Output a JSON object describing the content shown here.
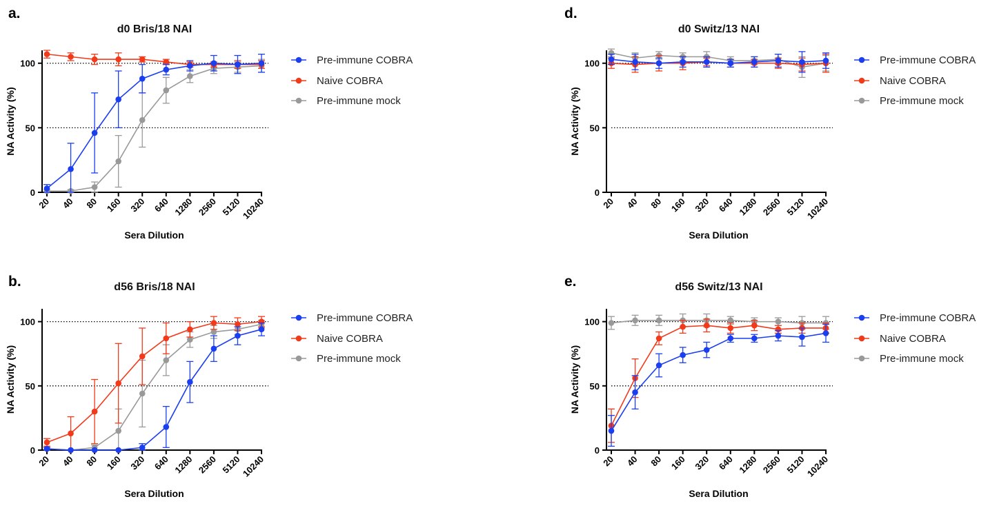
{
  "legend": {
    "series_names": [
      "Pre-immune COBRA",
      "Naive COBRA",
      "Pre-immune mock"
    ],
    "colors": [
      "#1a3ef0",
      "#f2391a",
      "#999999"
    ]
  },
  "chart_data": [
    {
      "type": "line",
      "panel_label": "a.",
      "title": "d0 Bris/18 NAI",
      "xlabel": "Sera Dilution",
      "ylabel": "NA Activity (%)",
      "categories": [
        "20",
        "40",
        "80",
        "160",
        "320",
        "640",
        "1280",
        "2560",
        "5120",
        "10240"
      ],
      "yticks": [
        "0",
        "50",
        "100"
      ],
      "ylim": [
        0,
        110
      ],
      "reference_lines": [
        50,
        100
      ],
      "legend_position": "right",
      "series": [
        {
          "name": "Pre-immune COBRA",
          "color": "#1a3ef0",
          "values": [
            3,
            18,
            46,
            72,
            88,
            95,
            98,
            100,
            99,
            100
          ],
          "errors": [
            3,
            20,
            31,
            22,
            11,
            4,
            4,
            6,
            7,
            7
          ]
        },
        {
          "name": "Naive COBRA",
          "color": "#f2391a",
          "values": [
            107,
            105,
            103,
            103,
            103,
            101,
            99,
            99,
            99,
            99
          ],
          "errors": [
            3,
            3,
            4,
            5,
            2,
            2,
            2,
            2,
            3,
            3
          ]
        },
        {
          "name": "Pre-immune mock",
          "color": "#999999",
          "values": [
            1,
            1,
            4,
            24,
            56,
            79,
            90,
            96,
            97,
            98
          ],
          "errors": [
            1,
            1,
            4,
            20,
            21,
            10,
            5,
            4,
            4,
            5
          ]
        }
      ]
    },
    {
      "type": "line",
      "panel_label": "b.",
      "title": "d56 Bris/18 NAI",
      "xlabel": "Sera Dilution",
      "ylabel": "NA Activity (%)",
      "categories": [
        "20",
        "40",
        "80",
        "160",
        "320",
        "640",
        "1280",
        "2560",
        "5120",
        "10240"
      ],
      "yticks": [
        "0",
        "50",
        "100"
      ],
      "ylim": [
        0,
        110
      ],
      "reference_lines": [
        50,
        100
      ],
      "legend_position": "right",
      "series": [
        {
          "name": "Pre-immune COBRA",
          "color": "#1a3ef0",
          "values": [
            1,
            0,
            0,
            0,
            2,
            18,
            53,
            79,
            89,
            94
          ],
          "errors": [
            1,
            0,
            0,
            0,
            3,
            16,
            16,
            10,
            7,
            5
          ]
        },
        {
          "name": "Naive COBRA",
          "color": "#f2391a",
          "values": [
            6,
            13,
            30,
            52,
            73,
            87,
            94,
            99,
            98,
            100
          ],
          "errors": [
            3,
            13,
            25,
            31,
            22,
            12,
            6,
            5,
            5,
            4
          ]
        },
        {
          "name": "Pre-immune mock",
          "color": "#999999",
          "values": [
            1,
            0,
            2,
            15,
            44,
            70,
            86,
            92,
            94,
            98
          ],
          "errors": [
            1,
            0,
            2,
            17,
            26,
            12,
            6,
            5,
            4,
            3
          ]
        }
      ]
    },
    {
      "type": "line",
      "panel_label": "d.",
      "title": "d0 Switz/13 NAI",
      "xlabel": "Sera Dilution",
      "ylabel": "NA Activity (%)",
      "categories": [
        "20",
        "40",
        "80",
        "160",
        "320",
        "640",
        "1280",
        "2560",
        "5120",
        "10240"
      ],
      "yticks": [
        "0",
        "50",
        "100"
      ],
      "ylim": [
        0,
        110
      ],
      "reference_lines": [
        50,
        100
      ],
      "legend_position": "right",
      "series": [
        {
          "name": "Pre-immune COBRA",
          "color": "#1a3ef0",
          "values": [
            103,
            101,
            100,
            101,
            101,
            100,
            101,
            102,
            101,
            102
          ],
          "errors": [
            4,
            6,
            4,
            4,
            4,
            3,
            4,
            5,
            8,
            6
          ]
        },
        {
          "name": "Naive COBRA",
          "color": "#f2391a",
          "values": [
            100,
            99,
            100,
            100,
            101,
            100,
            100,
            100,
            99,
            100
          ],
          "errors": [
            4,
            6,
            6,
            5,
            3,
            3,
            3,
            4,
            5,
            7
          ]
        },
        {
          "name": "Pre-immune mock",
          "color": "#999999",
          "values": [
            108,
            104,
            106,
            105,
            105,
            102,
            102,
            103,
            97,
            100
          ],
          "errors": [
            3,
            4,
            3,
            3,
            4,
            3,
            3,
            4,
            8,
            6
          ]
        }
      ]
    },
    {
      "type": "line",
      "panel_label": "e.",
      "title": "d56 Switz/13 NAI",
      "xlabel": "Sera Dilution",
      "ylabel": "NA Activity (%)",
      "categories": [
        "20",
        "40",
        "80",
        "160",
        "320",
        "640",
        "1280",
        "2560",
        "5120",
        "10240"
      ],
      "yticks": [
        "0",
        "50",
        "100"
      ],
      "ylim": [
        0,
        110
      ],
      "reference_lines": [
        50,
        100
      ],
      "legend_position": "right",
      "series": [
        {
          "name": "Pre-immune COBRA",
          "color": "#1a3ef0",
          "values": [
            15,
            45,
            66,
            74,
            78,
            87,
            87,
            89,
            88,
            91
          ],
          "errors": [
            12,
            13,
            9,
            6,
            6,
            3,
            3,
            4,
            7,
            7
          ]
        },
        {
          "name": "Naive COBRA",
          "color": "#f2391a",
          "values": [
            19,
            56,
            87,
            96,
            97,
            95,
            97,
            94,
            95,
            95
          ],
          "errors": [
            13,
            15,
            5,
            5,
            5,
            4,
            4,
            3,
            4,
            4
          ]
        },
        {
          "name": "Pre-immune mock",
          "color": "#999999",
          "values": [
            99,
            101,
            101,
            101,
            101,
            101,
            100,
            100,
            99,
            99
          ],
          "errors": [
            5,
            4,
            4,
            5,
            5,
            3,
            3,
            3,
            5,
            5
          ]
        }
      ]
    }
  ]
}
